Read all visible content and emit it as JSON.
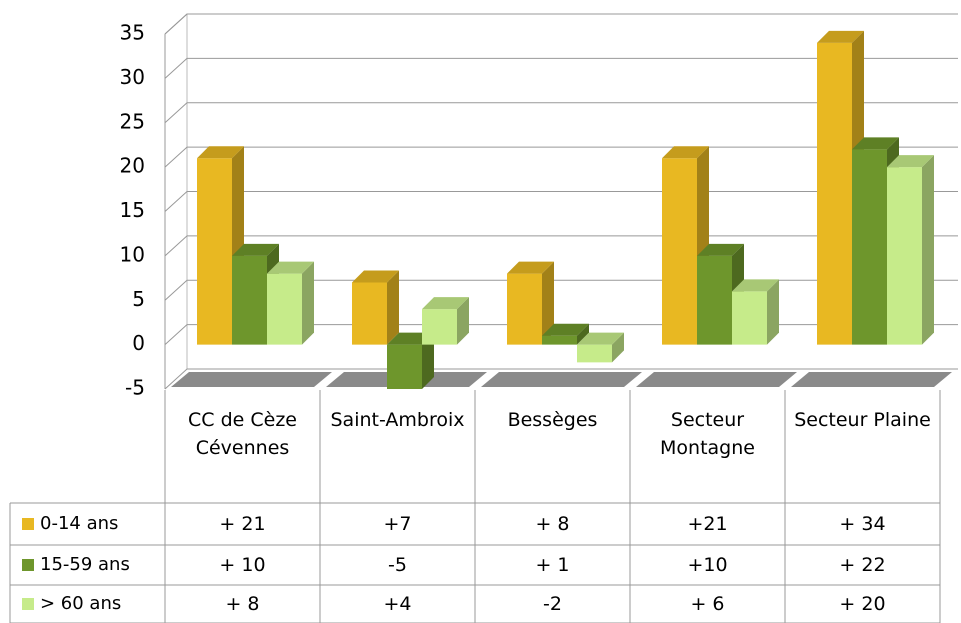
{
  "chart_data": {
    "type": "bar",
    "categories": [
      "CC de Cèze Cévennes",
      "Saint-Ambroix",
      "Bessèges",
      "Secteur Montagne",
      "Secteur Plaine"
    ],
    "series": [
      {
        "name": "0-14 ans",
        "color": "#e8b822",
        "values": [
          21,
          7,
          8,
          21,
          34
        ],
        "value_labels": [
          "+ 21",
          "+7",
          "+ 8",
          "+21",
          "+ 34"
        ]
      },
      {
        "name": "15-59 ans",
        "color": "#6e962c",
        "values": [
          10,
          -5,
          1,
          10,
          22
        ],
        "value_labels": [
          "+ 10",
          "-5",
          "+ 1",
          "+10",
          "+ 22"
        ]
      },
      {
        "name": "> 60 ans",
        "color": "#c6eb8a",
        "values": [
          8,
          4,
          -2,
          6,
          20
        ],
        "value_labels": [
          "+ 8",
          "+4",
          "-2",
          "+ 6",
          "+ 20"
        ]
      }
    ],
    "ylim": [
      -5,
      35
    ],
    "yticks": [
      -5,
      0,
      5,
      10,
      15,
      20,
      25,
      30,
      35
    ],
    "grid": true
  }
}
